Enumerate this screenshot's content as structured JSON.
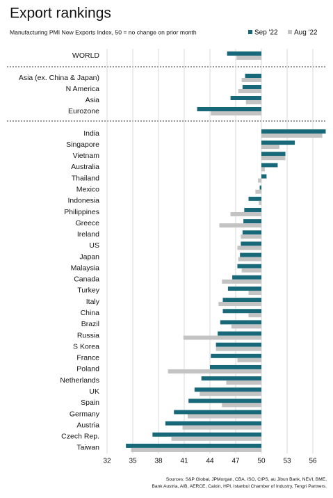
{
  "chart_data": {
    "type": "bar",
    "orientation": "horizontal",
    "title": "Export rankings",
    "subtitle": "Manufacturing PMI New Exports Index, 50 = no change on prior month",
    "source": [
      "Sources: S&P Global, JPMorgan, CBA, ISO, CIPS, au Jibun Bank, NEVI, BME,",
      "Bank Austria, AIB, AERCE, Caixin, HPI, Istanbul Chamber of Industry, Tengri Partners."
    ],
    "baseline": 50,
    "categories": [
      "WORLD",
      "Asia (ex. China & Japan)",
      "N America",
      "Asia",
      "Eurozone",
      "India",
      "Singapore",
      "Vietnam",
      "Australia",
      "Thailand",
      "Mexico",
      "Indonesia",
      "Philippines",
      "Greece",
      "Ireland",
      "US",
      "Japan",
      "Malaysia",
      "Canada",
      "Turkey",
      "Italy",
      "China",
      "Brazil",
      "Russia",
      "S Korea",
      "France",
      "Poland",
      "Netherlands",
      "UK",
      "Spain",
      "Germany",
      "Austria",
      "Czech Rep.",
      "Taiwan"
    ],
    "series": [
      {
        "name": "Sep '22",
        "color": "#17697a",
        "values": [
          46.0,
          48.1,
          47.8,
          46.4,
          42.5,
          57.5,
          53.9,
          52.8,
          51.9,
          50.6,
          49.8,
          48.5,
          48.0,
          47.9,
          47.8,
          47.6,
          47.5,
          47.2,
          46.6,
          46.1,
          45.5,
          45.5,
          45.2,
          44.9,
          44.7,
          44.1,
          44.0,
          43.0,
          42.2,
          41.5,
          39.8,
          38.8,
          37.3,
          34.2
        ]
      },
      {
        "name": "Aug '22",
        "color": "#c3c3c3",
        "values": [
          47.1,
          47.7,
          47.3,
          48.2,
          44.1,
          57.1,
          52.1,
          52.8,
          50.4,
          49.6,
          49.3,
          49.7,
          46.4,
          45.1,
          47.6,
          47.2,
          47.3,
          47.7,
          45.4,
          48.5,
          45.0,
          48.5,
          46.5,
          40.9,
          44.7,
          47.2,
          39.1,
          45.9,
          42.8,
          45.4,
          41.4,
          40.8,
          39.5,
          34.8
        ]
      }
    ],
    "xlim": [
      32,
      56
    ],
    "xticks": [
      32,
      35,
      38,
      41,
      44,
      47,
      50,
      53,
      56
    ],
    "grid": true,
    "legend": "top-right"
  }
}
